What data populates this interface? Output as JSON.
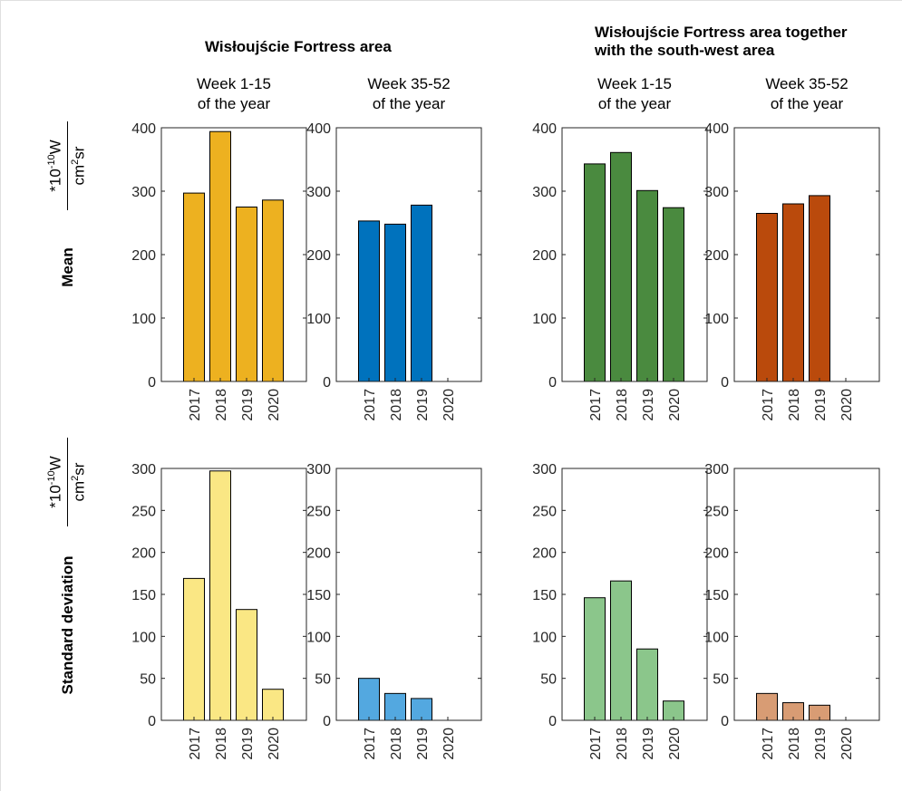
{
  "groups": [
    {
      "title_line1": "Wisłoujście Fortress area",
      "title_line2": ""
    },
    {
      "title_line1": "Wisłoujście Fortress area together",
      "title_line2": "with the south-west area"
    }
  ],
  "subtitles": [
    {
      "line1": "Week 1-15",
      "line2": "of the year"
    },
    {
      "line1": "Week 35-52",
      "line2": "of the year"
    },
    {
      "line1": "Week 1-15",
      "line2": "of the year"
    },
    {
      "line1": "Week 35-52",
      "line2": "of the year"
    }
  ],
  "rows": [
    {
      "label": "Mean",
      "unit_num": "*10",
      "unit_exp": "-10",
      "unit_w": "W",
      "unit_den": "cm",
      "unit_den_exp": "2",
      "unit_den_tail": "sr"
    },
    {
      "label": "Standard deviation",
      "unit_num": "*10",
      "unit_exp": "-10",
      "unit_w": "W",
      "unit_den": "cm",
      "unit_den_exp": "2",
      "unit_den_tail": "sr"
    }
  ],
  "chart_data": [
    {
      "type": "bar",
      "row": "Mean",
      "group": "Wisłoujście Fortress area",
      "panel": "Week 1-15 of the year",
      "categories": [
        "2017",
        "2018",
        "2019",
        "2020"
      ],
      "values": [
        297,
        394,
        275,
        286
      ],
      "ylim": [
        0,
        400
      ],
      "yticks": [
        0,
        100,
        200,
        300,
        400
      ],
      "color": "#EDB120"
    },
    {
      "type": "bar",
      "row": "Mean",
      "group": "Wisłoujście Fortress area",
      "panel": "Week 35-52 of the year",
      "categories": [
        "2017",
        "2018",
        "2019",
        "2020"
      ],
      "values": [
        253,
        248,
        278,
        null
      ],
      "ylim": [
        0,
        400
      ],
      "yticks": [
        0,
        100,
        200,
        300,
        400
      ],
      "color": "#0072BD"
    },
    {
      "type": "bar",
      "row": "Mean",
      "group": "Wisłoujście Fortress area together with the south-west area",
      "panel": "Week 1-15 of the year",
      "categories": [
        "2017",
        "2018",
        "2019",
        "2020"
      ],
      "values": [
        343,
        361,
        301,
        274
      ],
      "ylim": [
        0,
        400
      ],
      "yticks": [
        0,
        100,
        200,
        300,
        400
      ],
      "color": "#4A8A3F"
    },
    {
      "type": "bar",
      "row": "Mean",
      "group": "Wisłoujście Fortress area together with the south-west area",
      "panel": "Week 35-52 of the year",
      "categories": [
        "2017",
        "2018",
        "2019",
        "2020"
      ],
      "values": [
        265,
        280,
        293,
        null
      ],
      "ylim": [
        0,
        400
      ],
      "yticks": [
        0,
        100,
        200,
        300,
        400
      ],
      "color": "#BA4A0C"
    },
    {
      "type": "bar",
      "row": "Standard deviation",
      "group": "Wisłoujście Fortress area",
      "panel": "Week 1-15 of the year",
      "categories": [
        "2017",
        "2018",
        "2019",
        "2020"
      ],
      "values": [
        169,
        297,
        132,
        37
      ],
      "ylim": [
        0,
        300
      ],
      "yticks": [
        0,
        50,
        100,
        150,
        200,
        250,
        300
      ],
      "color": "#FAE784"
    },
    {
      "type": "bar",
      "row": "Standard deviation",
      "group": "Wisłoujście Fortress area",
      "panel": "Week 35-52 of the year",
      "categories": [
        "2017",
        "2018",
        "2019",
        "2020"
      ],
      "values": [
        50,
        32,
        26,
        null
      ],
      "ylim": [
        0,
        300
      ],
      "yticks": [
        0,
        50,
        100,
        150,
        200,
        250,
        300
      ],
      "color": "#53A8E0"
    },
    {
      "type": "bar",
      "row": "Standard deviation",
      "group": "Wisłoujście Fortress area together with the south-west area",
      "panel": "Week 1-15 of the year",
      "categories": [
        "2017",
        "2018",
        "2019",
        "2020"
      ],
      "values": [
        146,
        166,
        85,
        23
      ],
      "ylim": [
        0,
        300
      ],
      "yticks": [
        0,
        50,
        100,
        150,
        200,
        250,
        300
      ],
      "color": "#8BC68B"
    },
    {
      "type": "bar",
      "row": "Standard deviation",
      "group": "Wisłoujście Fortress area together with the south-west area",
      "panel": "Week 35-52 of the year",
      "categories": [
        "2017",
        "2018",
        "2019",
        "2020"
      ],
      "values": [
        32,
        21,
        18,
        null
      ],
      "ylim": [
        0,
        300
      ],
      "yticks": [
        0,
        50,
        100,
        150,
        200,
        250,
        300
      ],
      "color": "#D89C74"
    }
  ]
}
